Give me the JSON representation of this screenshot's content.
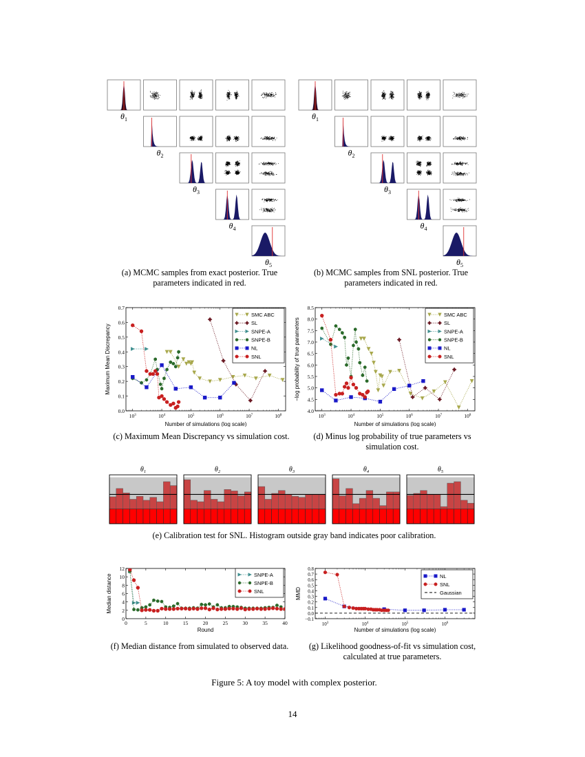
{
  "page": {
    "number": "14",
    "figure_caption": "Figure 5: A toy model with complex posterior."
  },
  "subfigures": {
    "a": {
      "caption_line1": "(a) MCMC samples from exact posterior. True",
      "caption_line2": "parameters indicated in red."
    },
    "b": {
      "caption_line1": "(b) MCMC samples from SNL posterior. True",
      "caption_line2": "parameters indicated in red."
    },
    "c": {
      "caption": "(c) Maximum Mean Discrepancy vs simulation cost."
    },
    "d": {
      "caption_line1": "(d) Minus log probability of true parameters vs",
      "caption_line2": "simulation cost."
    },
    "e": {
      "caption": "(e) Calibration test for SNL. Histogram outside gray band indicates poor calibration."
    },
    "f": {
      "caption": "(f) Median distance from simulated to observed data."
    },
    "g": {
      "caption_line1": "(g) Likelihood goodness-of-fit vs simulation cost,",
      "caption_line2": "calculated at true parameters."
    }
  },
  "colors": {
    "smc_abc": "#a8a84c",
    "sl": "#6b1a24",
    "snpe_a": "#3f8f8f",
    "snpe_b": "#2a6a2a",
    "nl": "#1a1ac8",
    "snl": "#c82020",
    "band_gray": "#c8c8c8",
    "hist_bar": "#c84444",
    "hist_low": "#ff0000"
  },
  "chart_data": [
    {
      "id": "a",
      "type": "corner_plot",
      "title": "MCMC samples from exact posterior",
      "param_labels": [
        "θ1",
        "θ2",
        "θ3",
        "θ4",
        "θ5"
      ],
      "diagonal": "histograms with red true-parameter line",
      "off_diagonal": "scatter plots"
    },
    {
      "id": "b",
      "type": "corner_plot",
      "title": "MCMC samples from SNL posterior",
      "param_labels": [
        "θ1",
        "θ2",
        "θ3",
        "θ4",
        "θ5"
      ],
      "diagonal": "histograms with red true-parameter line",
      "off_diagonal": "scatter plots"
    },
    {
      "id": "c",
      "type": "scatter",
      "xlabel": "Number of simulations (log scale)",
      "ylabel": "Maximum Mean Discrepancy",
      "xscale": "log",
      "xticks": [
        "10^3",
        "10^4",
        "10^5",
        "10^6",
        "10^7",
        "10^8"
      ],
      "yticks": [
        "0.0",
        "0.1",
        "0.2",
        "0.3",
        "0.4",
        "0.5",
        "0.6",
        "0.7"
      ],
      "ylim": [
        0,
        0.7
      ],
      "legend": [
        "SMC ABC",
        "SL",
        "SNPE-A",
        "SNPE-B",
        "NL",
        "SNL"
      ],
      "legend_position": "upper right",
      "series": [
        {
          "name": "SMC ABC",
          "x": [
            15000,
            20000,
            38000,
            55000,
            70000,
            85000,
            100000,
            110000,
            130000,
            200000,
            450000,
            1000000,
            2800000,
            7000000,
            17000000,
            50000000,
            140000000
          ],
          "y": [
            0.4,
            0.4,
            0.3,
            0.35,
            0.32,
            0.33,
            0.32,
            0.33,
            0.26,
            0.22,
            0.2,
            0.21,
            0.23,
            0.24,
            0.22,
            0.24,
            0.21
          ]
        },
        {
          "name": "SL",
          "x": [
            450000,
            1300000,
            3500000,
            11000000,
            35000000
          ],
          "y": [
            0.62,
            0.34,
            0.18,
            0.07,
            0.27
          ]
        },
        {
          "name": "SNPE-A",
          "x": [
            1000,
            3000
          ],
          "y": [
            0.42,
            0.42
          ]
        },
        {
          "name": "SNPE-B",
          "x": [
            1000,
            2000,
            3000,
            4000,
            6000,
            7000,
            9000,
            10000,
            12000,
            15000,
            20000,
            25000,
            30000,
            35000,
            38000
          ],
          "y": [
            0.22,
            0.19,
            0.21,
            0.25,
            0.35,
            0.28,
            0.18,
            0.15,
            0.22,
            0.28,
            0.33,
            0.32,
            0.3,
            0.36,
            0.4
          ]
        },
        {
          "name": "NL",
          "x": [
            1000,
            3000,
            10000,
            30000,
            100000,
            300000,
            1000000,
            3000000
          ],
          "y": [
            0.23,
            0.16,
            0.31,
            0.15,
            0.16,
            0.09,
            0.09,
            0.19
          ]
        },
        {
          "name": "SNL",
          "x": [
            1000,
            2000,
            3000,
            4000,
            5000,
            6000,
            7000,
            8000,
            10000,
            12000,
            15000,
            20000,
            25000,
            30000,
            35000,
            38000
          ],
          "y": [
            0.58,
            0.54,
            0.27,
            0.25,
            0.25,
            0.27,
            0.25,
            0.09,
            0.1,
            0.08,
            0.06,
            0.04,
            0.05,
            0.02,
            0.03,
            0.06
          ]
        }
      ]
    },
    {
      "id": "d",
      "type": "scatter",
      "xlabel": "Number of simulations (log scale)",
      "ylabel": "−log probability of true parameters",
      "xscale": "log",
      "xticks": [
        "10^3",
        "10^4",
        "10^5",
        "10^6",
        "10^7",
        "10^8"
      ],
      "yticks": [
        "4.0",
        "4.5",
        "5.0",
        "5.5",
        "6.0",
        "6.5",
        "7.0",
        "7.5",
        "8.0",
        "8.5"
      ],
      "ylim": [
        4.0,
        8.5
      ],
      "legend": [
        "SMC ABC",
        "SL",
        "SNPE-A",
        "SNPE-B",
        "NL",
        "SNL"
      ],
      "legend_position": "upper right",
      "series": [
        {
          "name": "SMC ABC",
          "x": [
            22000,
            28000,
            40000,
            50000,
            60000,
            70000,
            85000,
            100000,
            115000,
            130000,
            220000,
            450000,
            1100000,
            2800000,
            7000000,
            17000000,
            50000000,
            140000000
          ],
          "y": [
            7.15,
            7.15,
            6.7,
            6.5,
            6.1,
            5.7,
            4.9,
            5.55,
            5.5,
            5.1,
            5.7,
            5.75,
            4.75,
            4.55,
            4.85,
            5.25,
            4.15,
            5.3
          ]
        },
        {
          "name": "SL",
          "x": [
            450000,
            1300000,
            3500000,
            11000000,
            35000000
          ],
          "y": [
            7.1,
            4.6,
            5.0,
            4.5,
            5.8
          ]
        },
        {
          "name": "SNPE-A",
          "x": [
            1000,
            3000
          ],
          "y": [
            7.15,
            6.8
          ]
        },
        {
          "name": "SNPE-B",
          "x": [
            1000,
            2000,
            3000,
            4000,
            5000,
            6000,
            7000,
            8000,
            10000,
            12000,
            14000,
            15000,
            18000,
            20000,
            25000,
            30000,
            35000
          ],
          "y": [
            7.6,
            6.9,
            7.7,
            7.55,
            7.4,
            7.2,
            6.0,
            6.3,
            5.5,
            6.85,
            7.55,
            7.0,
            6.7,
            6.1,
            5.55,
            5.9,
            5.3
          ]
        },
        {
          "name": "NL",
          "x": [
            1000,
            3000,
            10000,
            30000,
            100000,
            300000,
            1000000,
            3000000
          ],
          "y": [
            4.9,
            4.45,
            4.6,
            4.55,
            4.4,
            4.95,
            5.1,
            5.3
          ]
        },
        {
          "name": "SNL",
          "x": [
            1000,
            2000,
            3000,
            4000,
            5000,
            6000,
            7000,
            8000,
            10000,
            12000,
            15000,
            20000,
            25000,
            30000,
            35000,
            38000
          ],
          "y": [
            8.15,
            7.1,
            4.7,
            4.75,
            4.75,
            5.05,
            5.2,
            5.0,
            5.45,
            5.15,
            5.0,
            4.75,
            4.7,
            4.6,
            4.8,
            4.85
          ]
        }
      ]
    },
    {
      "id": "e",
      "type": "bar",
      "title": "Calibration test for SNL",
      "panels": [
        {
          "label": "θ1",
          "values": [
            0.55,
            0.72,
            0.63,
            0.5,
            0.56,
            0.48,
            0.54,
            0.45,
            0.86,
            0.78
          ]
        },
        {
          "label": "θ2",
          "values": [
            0.9,
            0.48,
            0.45,
            0.68,
            0.5,
            0.45,
            0.7,
            0.67,
            0.57,
            0.65
          ]
        },
        {
          "label": "θ3",
          "values": [
            0.76,
            0.5,
            0.62,
            0.68,
            0.6,
            0.56,
            0.54,
            0.6,
            0.6,
            0.6
          ]
        },
        {
          "label": "θ4",
          "values": [
            0.92,
            0.57,
            0.72,
            0.41,
            0.52,
            0.68,
            0.52,
            0.37,
            0.65,
            0.65
          ]
        },
        {
          "label": "θ5",
          "values": [
            0.58,
            0.62,
            0.68,
            0.6,
            0.6,
            0.35,
            0.83,
            0.86,
            0.48,
            0.42
          ]
        }
      ],
      "mean_line": 0.6,
      "band": [
        0.3,
        0.95
      ]
    },
    {
      "id": "f",
      "type": "line",
      "xlabel": "Round",
      "ylabel": "Median distance",
      "xticks": [
        "0",
        "5",
        "10",
        "15",
        "20",
        "25",
        "30",
        "35",
        "40"
      ],
      "yticks": [
        "0",
        "2",
        "4",
        "6",
        "8",
        "10",
        "12"
      ],
      "xlim": [
        0,
        40
      ],
      "ylim": [
        0,
        12
      ],
      "legend": [
        "SNPE-A",
        "SNPE-B",
        "SNL"
      ],
      "legend_position": "upper right",
      "series": [
        {
          "name": "SNPE-A",
          "x": [
            1,
            2,
            3
          ],
          "y": [
            11.3,
            3.8,
            3.8
          ]
        },
        {
          "name": "SNPE-B",
          "x": [
            1,
            2,
            3,
            4,
            5,
            6,
            7,
            8,
            9,
            10,
            11,
            12,
            13,
            14,
            15,
            16,
            17,
            18,
            19,
            20,
            21,
            22,
            23,
            24,
            25,
            26,
            27,
            28,
            29,
            30,
            31,
            32,
            33,
            34,
            35,
            36,
            37,
            38,
            39,
            40
          ],
          "y": [
            11.3,
            2.2,
            2.1,
            2.6,
            2.8,
            3.3,
            4.4,
            4.2,
            4.1,
            2.8,
            2.7,
            3.0,
            3.6,
            2.5,
            2.5,
            2.5,
            2.6,
            2.5,
            3.4,
            3.3,
            3.5,
            2.8,
            3.3,
            2.6,
            2.6,
            2.9,
            2.9,
            2.8,
            2.7,
            2.5,
            2.5,
            2.5,
            2.5,
            2.5,
            2.6,
            2.7,
            2.7,
            3.2,
            2.8,
            2.3
          ]
        },
        {
          "name": "SNL",
          "x": [
            1,
            2,
            3,
            4,
            5,
            6,
            7,
            8,
            9,
            10,
            11,
            12,
            13,
            14,
            15,
            16,
            17,
            18,
            19,
            20,
            21,
            22,
            23,
            24,
            25,
            26,
            27,
            28,
            29,
            30,
            31,
            32,
            33,
            34,
            35,
            36,
            37,
            38,
            39,
            40
          ],
          "y": [
            11.7,
            9.2,
            7.4,
            2.0,
            2.1,
            2.1,
            1.9,
            1.9,
            2.4,
            2.3,
            2.3,
            2.3,
            2.4,
            2.4,
            2.4,
            2.3,
            2.4,
            2.3,
            2.5,
            2.5,
            2.2,
            2.5,
            2.2,
            2.3,
            2.3,
            2.4,
            2.4,
            2.3,
            2.5,
            2.2,
            2.3,
            2.3,
            2.4,
            2.3,
            2.3,
            2.4,
            2.5,
            2.4,
            2.3,
            2.3
          ]
        }
      ]
    },
    {
      "id": "g",
      "type": "line",
      "xlabel": "Number of simulations (log scale)",
      "ylabel": "MMD",
      "xscale": "log",
      "xticks": [
        "10^3",
        "10^4",
        "10^5",
        "10^6"
      ],
      "yticks": [
        "−0.1",
        "0.0",
        "0.1",
        "0.2",
        "0.3",
        "0.4",
        "0.5",
        "0.6",
        "0.7",
        "0.8"
      ],
      "ylim": [
        -0.1,
        0.8
      ],
      "legend": [
        "NL",
        "SNL",
        "Gaussian"
      ],
      "legend_position": "upper right",
      "series": [
        {
          "name": "NL",
          "x": [
            1000,
            3000,
            30000,
            100000,
            300000,
            1000000,
            3000000
          ],
          "y": [
            0.26,
            0.12,
            0.07,
            0.05,
            0.05,
            0.06,
            0.06
          ]
        },
        {
          "name": "SNL",
          "x": [
            1000,
            2000,
            3000,
            4000,
            5000,
            6000,
            7000,
            8000,
            9000,
            10000,
            12000,
            14000,
            16000,
            18000,
            20000,
            23000,
            26000,
            30000,
            34000,
            38000
          ],
          "y": [
            0.73,
            0.69,
            0.12,
            0.1,
            0.09,
            0.08,
            0.08,
            0.08,
            0.08,
            0.08,
            0.07,
            0.07,
            0.06,
            0.06,
            0.06,
            0.06,
            0.05,
            0.05,
            0.05,
            0.05
          ]
        },
        {
          "name": "Gaussian",
          "style": "dashed",
          "y_const": 0.0
        }
      ]
    }
  ]
}
